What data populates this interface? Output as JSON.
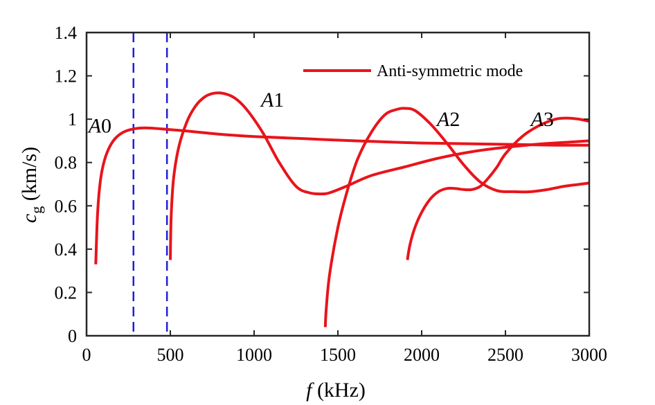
{
  "chart_data": {
    "type": "line",
    "xlabel": {
      "italic": "f",
      "rest": " (kHz)"
    },
    "ylabel": {
      "italic": "c",
      "sub": "g",
      "rest": " (km/s)"
    },
    "xlim": [
      0,
      3000
    ],
    "ylim": [
      0,
      1.4
    ],
    "xticks": [
      0,
      500,
      1000,
      1500,
      2000,
      2500,
      3000
    ],
    "yticks": [
      0,
      0.2,
      0.4,
      0.6,
      0.8,
      1,
      1.2,
      1.4
    ],
    "ytick_labels": [
      "0",
      "0.2",
      "0.4",
      "0.6",
      "0.8",
      "1",
      "1.2",
      "1.4"
    ],
    "grid": false,
    "legend": {
      "position": "top-right",
      "entries": [
        "Anti-symmetric mode"
      ]
    },
    "series_color": "#e8141b",
    "reference_line_color": "#1f1fd6",
    "vertical_reference_lines": [
      280,
      480
    ],
    "mode_labels": [
      {
        "text": "A0",
        "italic": "A",
        "rest": "0",
        "x": 80,
        "y": 0.97
      },
      {
        "text": "A1",
        "italic": "A",
        "rest": "1",
        "x": 1110,
        "y": 1.09
      },
      {
        "text": "A2",
        "italic": "A",
        "rest": "2",
        "x": 2160,
        "y": 1.0
      },
      {
        "text": "A3",
        "italic": "A",
        "rest": "3",
        "x": 2720,
        "y": 1.0
      }
    ],
    "series": [
      {
        "name": "A0 (anti-symmetric)",
        "x": [
          55,
          65,
          80,
          100,
          130,
          170,
          220,
          280,
          350,
          450,
          600,
          800,
          1000,
          1300,
          1600,
          2000,
          2400,
          2800,
          3000
        ],
        "y": [
          0.33,
          0.55,
          0.7,
          0.79,
          0.86,
          0.91,
          0.94,
          0.955,
          0.96,
          0.955,
          0.945,
          0.93,
          0.92,
          0.91,
          0.9,
          0.89,
          0.885,
          0.88,
          0.88
        ]
      },
      {
        "name": "A1 (anti-symmetric)",
        "x": [
          500,
          505,
          520,
          550,
          600,
          650,
          700,
          750,
          810,
          880,
          950,
          1050,
          1150,
          1250,
          1330,
          1400,
          1450,
          1550,
          1700,
          1900,
          2100,
          2300,
          2500,
          2700,
          2900,
          3000
        ],
        "y": [
          0.35,
          0.55,
          0.73,
          0.87,
          0.99,
          1.06,
          1.1,
          1.118,
          1.12,
          1.1,
          1.05,
          0.94,
          0.8,
          0.69,
          0.66,
          0.655,
          0.66,
          0.69,
          0.74,
          0.78,
          0.82,
          0.85,
          0.87,
          0.885,
          0.895,
          0.9
        ]
      },
      {
        "name": "A2 (anti-symmetric)",
        "x": [
          1425,
          1430,
          1450,
          1500,
          1560,
          1620,
          1700,
          1780,
          1850,
          1900,
          1960,
          2050,
          2150,
          2250,
          2350,
          2450,
          2550,
          2650,
          2750,
          2850,
          2950,
          3000
        ],
        "y": [
          0.04,
          0.12,
          0.28,
          0.5,
          0.68,
          0.82,
          0.94,
          1.02,
          1.045,
          1.05,
          1.04,
          0.98,
          0.89,
          0.79,
          0.71,
          0.67,
          0.665,
          0.665,
          0.675,
          0.69,
          0.7,
          0.705
        ]
      },
      {
        "name": "A3 (anti-symmetric)",
        "x": [
          1915,
          1930,
          1960,
          2000,
          2050,
          2100,
          2150,
          2200,
          2250,
          2300,
          2350,
          2400,
          2450,
          2500,
          2600,
          2700,
          2800,
          2870,
          2940,
          3000
        ],
        "y": [
          0.35,
          0.42,
          0.5,
          0.57,
          0.63,
          0.665,
          0.68,
          0.68,
          0.675,
          0.675,
          0.69,
          0.73,
          0.78,
          0.84,
          0.92,
          0.97,
          1.0,
          1.005,
          1.0,
          0.99
        ]
      }
    ]
  }
}
